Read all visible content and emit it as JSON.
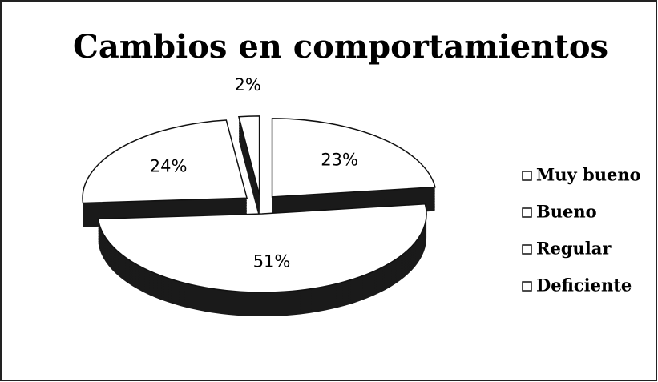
{
  "chart_data": {
    "type": "pie",
    "title": "Cambios en comportamientos",
    "categories": [
      "Muy bueno",
      "Bueno",
      "Regular",
      "Deficiente"
    ],
    "values": [
      23,
      51,
      24,
      2
    ],
    "value_labels": [
      "23%",
      "51%",
      "24%",
      "2%"
    ],
    "colors": [
      "#ffffff",
      "#ffffff",
      "#ffffff",
      "#ffffff"
    ],
    "legend": "right"
  }
}
